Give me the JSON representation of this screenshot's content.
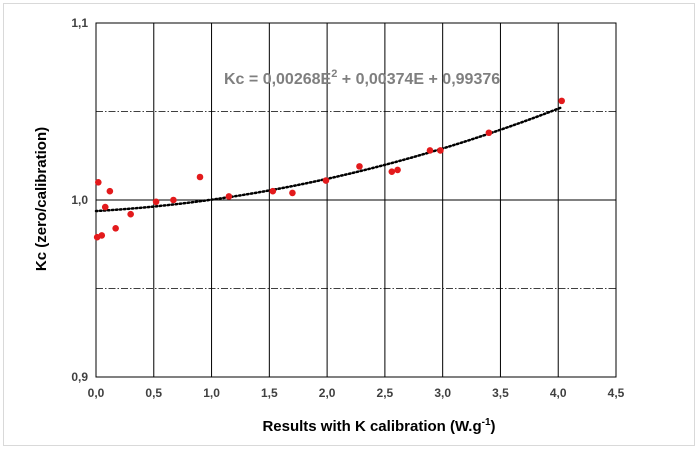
{
  "chart_data": {
    "type": "scatter",
    "xlabel": "Results with K calibration (W.g",
    "xlabel_superscript": "-1",
    "xlabel_suffix": ")",
    "ylabel": "Kc (zero/calibration)",
    "xlim": [
      0,
      4.5
    ],
    "ylim": [
      0.9,
      1.1
    ],
    "x_ticks": [
      "0,0",
      "0,5",
      "1,0",
      "1,5",
      "2,0",
      "2,5",
      "3,0",
      "3,5",
      "4,0",
      "4,5"
    ],
    "y_ticks": [
      "0,9",
      "1,0",
      "1,1"
    ],
    "reference_lines_y": [
      0.95,
      1.05
    ],
    "grid": true,
    "point_color": "#e31a1c",
    "trendline": {
      "type": "polynomial",
      "color": "#000000",
      "coefficients": [
        0.00268,
        0.00374,
        0.99376
      ],
      "label_main": "Kc = 0,00268E",
      "label_sup": "2",
      "label_rest": " + 0,00374E + 0,99376"
    },
    "points": [
      {
        "x": 0.01,
        "y": 0.979
      },
      {
        "x": 0.02,
        "y": 1.01
      },
      {
        "x": 0.05,
        "y": 0.98
      },
      {
        "x": 0.08,
        "y": 0.996
      },
      {
        "x": 0.12,
        "y": 1.005
      },
      {
        "x": 0.17,
        "y": 0.984
      },
      {
        "x": 0.3,
        "y": 0.992
      },
      {
        "x": 0.52,
        "y": 0.999
      },
      {
        "x": 0.67,
        "y": 1.0
      },
      {
        "x": 0.9,
        "y": 1.013
      },
      {
        "x": 1.15,
        "y": 1.002
      },
      {
        "x": 1.53,
        "y": 1.005
      },
      {
        "x": 1.7,
        "y": 1.004
      },
      {
        "x": 1.99,
        "y": 1.011
      },
      {
        "x": 2.28,
        "y": 1.019
      },
      {
        "x": 2.56,
        "y": 1.016
      },
      {
        "x": 2.61,
        "y": 1.017
      },
      {
        "x": 2.89,
        "y": 1.028
      },
      {
        "x": 2.98,
        "y": 1.028
      },
      {
        "x": 3.4,
        "y": 1.038
      },
      {
        "x": 4.03,
        "y": 1.056
      }
    ]
  }
}
